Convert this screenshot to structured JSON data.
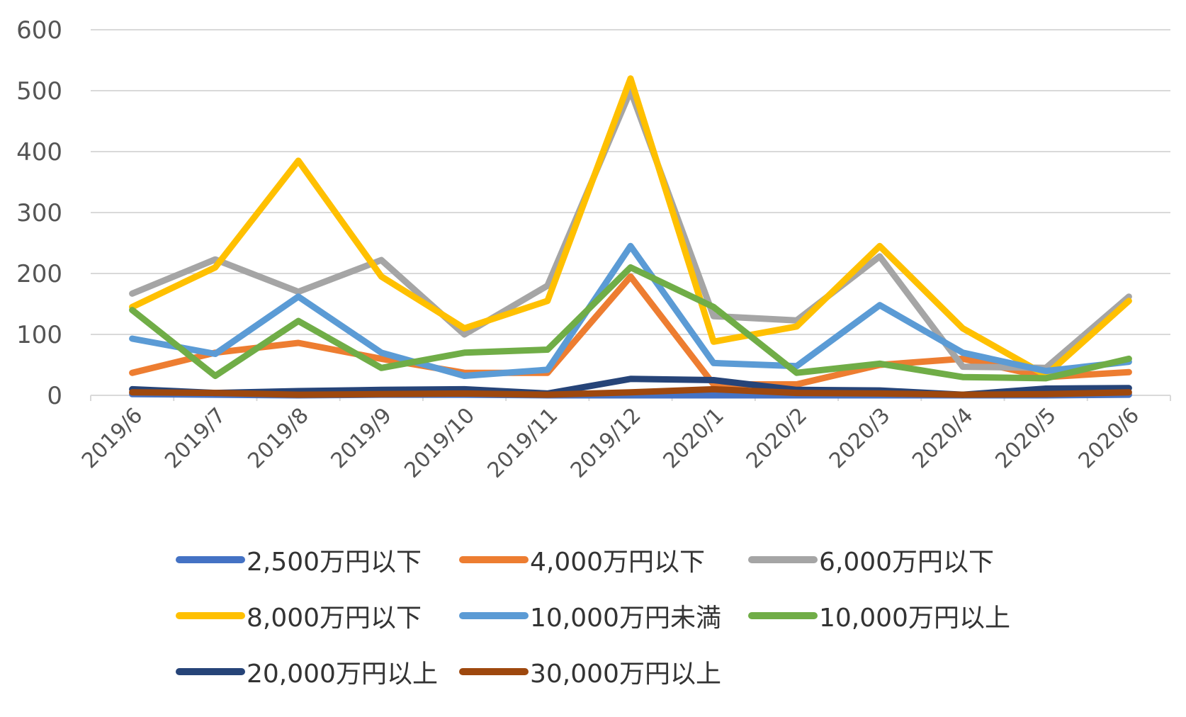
{
  "chart_data": {
    "type": "line",
    "categories": [
      "2019/6",
      "2019/7",
      "2019/8",
      "2019/9",
      "2019/10",
      "2019/11",
      "2019/12",
      "2020/1",
      "2020/2",
      "2020/3",
      "2020/4",
      "2020/5",
      "2020/6"
    ],
    "ylim": [
      0,
      600
    ],
    "yticks": [
      "0",
      "100",
      "200",
      "300",
      "400",
      "500",
      "600"
    ],
    "grid": true,
    "legend_position": "bottom",
    "series": [
      {
        "name": "2,500万円以下",
        "color": "#4472c4",
        "values": [
          2,
          1,
          0,
          1,
          1,
          0,
          0,
          0,
          0,
          0,
          0,
          0,
          1
        ]
      },
      {
        "name": "4,000万円以下",
        "color": "#ed7d31",
        "values": [
          37,
          70,
          86,
          60,
          37,
          37,
          195,
          18,
          18,
          50,
          60,
          30,
          38
        ]
      },
      {
        "name": "6,000万円以下",
        "color": "#a5a5a5",
        "values": [
          167,
          223,
          170,
          222,
          100,
          180,
          500,
          130,
          123,
          228,
          47,
          45,
          162
        ]
      },
      {
        "name": "8,000万円以下",
        "color": "#ffc000",
        "values": [
          145,
          210,
          385,
          195,
          110,
          155,
          520,
          88,
          113,
          245,
          110,
          33,
          155
        ]
      },
      {
        "name": "10,000万円未満",
        "color": "#5b9bd5",
        "values": [
          93,
          68,
          162,
          70,
          32,
          42,
          245,
          53,
          48,
          148,
          70,
          40,
          55
        ]
      },
      {
        "name": "10,000万円以上",
        "color": "#70ad47",
        "values": [
          140,
          32,
          122,
          45,
          70,
          75,
          210,
          145,
          37,
          52,
          30,
          28,
          60
        ]
      },
      {
        "name": "20,000万円以上",
        "color": "#264478",
        "values": [
          10,
          4,
          7,
          9,
          10,
          3,
          27,
          25,
          9,
          8,
          1,
          11,
          12
        ]
      },
      {
        "name": "30,000万円以上",
        "color": "#9e480e",
        "values": [
          5,
          4,
          1,
          2,
          3,
          1,
          5,
          10,
          4,
          3,
          1,
          2,
          5
        ]
      }
    ]
  }
}
